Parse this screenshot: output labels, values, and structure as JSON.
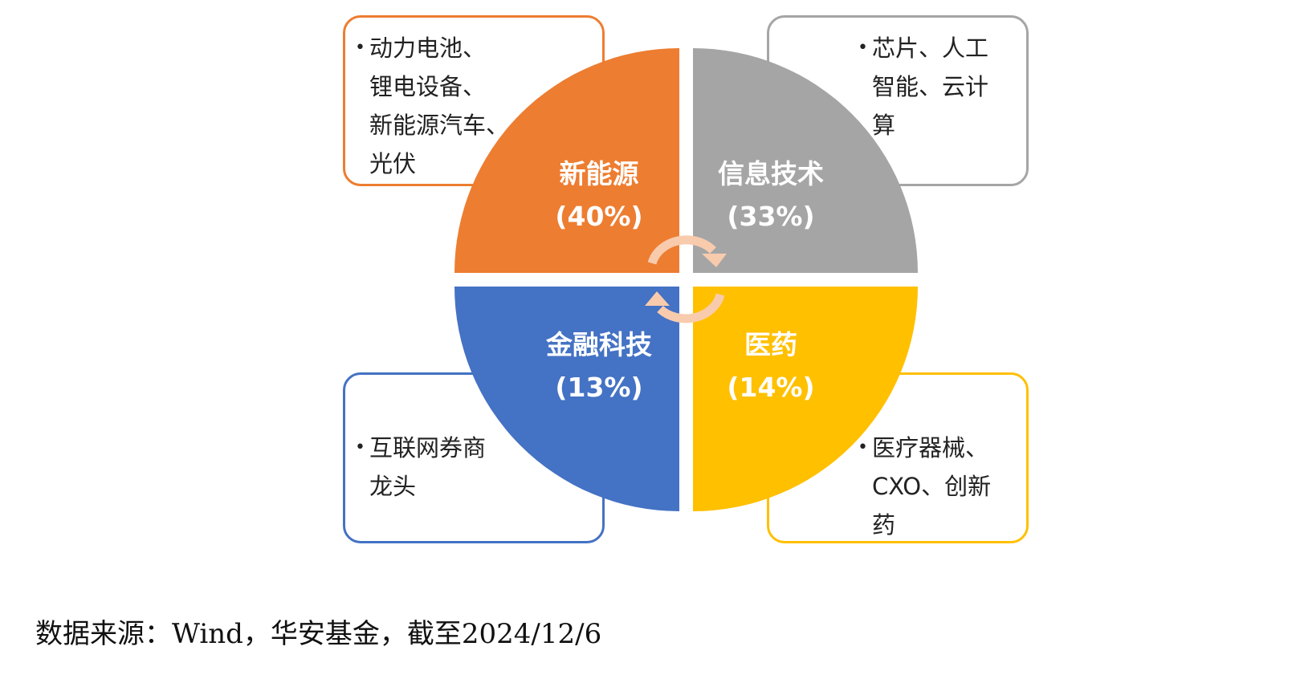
{
  "colors": {
    "new_energy": "#ED7D31",
    "info_tech": "#A5A5A5",
    "fintech": "#4472C4",
    "pharma": "#FFC000",
    "arrow": "#F8CBAD"
  },
  "quadrants": {
    "new_energy": {
      "name": "新能源",
      "pct": "(40%)"
    },
    "info_tech": {
      "name": "信息技术",
      "pct": "(33%)"
    },
    "fintech": {
      "name": "金融科技",
      "pct": "(13%)"
    },
    "pharma": {
      "name": "医药",
      "pct": "(14%)"
    }
  },
  "boxes": {
    "new_energy": {
      "bullet": "•",
      "text": "动力电池、\n锂电设备、\n新能源汽车、\n光伏"
    },
    "info_tech": {
      "bullet": "•",
      "text": "芯片、人工\n智能、云计\n算"
    },
    "fintech": {
      "bullet": "•",
      "text": "互联网券商\n龙头"
    },
    "pharma": {
      "bullet": "•",
      "text": "医疗器械、\nCXO、创新\n药"
    }
  },
  "source": "数据来源：Wind，华安基金，截至2024/12/6"
}
